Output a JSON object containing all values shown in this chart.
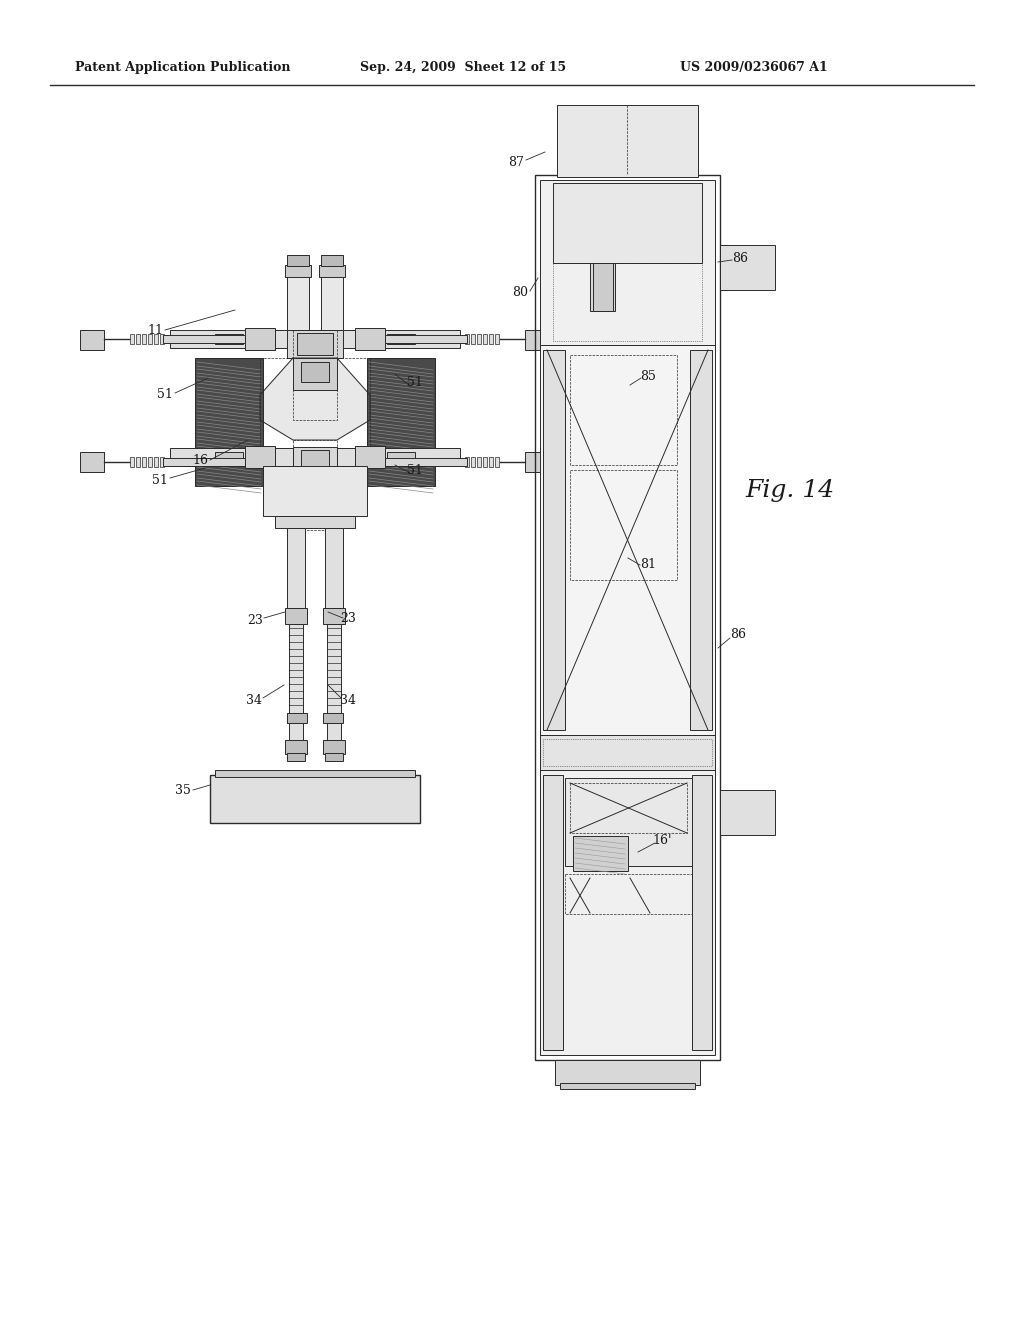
{
  "bg_color": "#ffffff",
  "line_color": "#2a2a2a",
  "header_text": "Patent Application Publication",
  "header_date": "Sep. 24, 2009  Sheet 12 of 15",
  "header_patent": "US 2009/0236067 A1",
  "fig_label": "Fig. 14"
}
